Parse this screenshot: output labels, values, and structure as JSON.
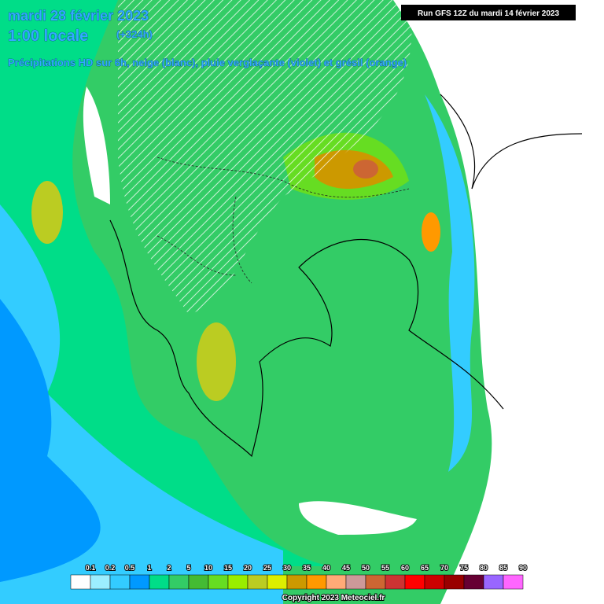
{
  "header": {
    "date": "mardi 28 février 2023",
    "time": "1:00 locale",
    "offset": "(+324h)",
    "description": "Précipitations HD sur 6h, neige (blanc), pluie verglaçante (violet) et grésil (orange)",
    "run": "Run GFS 12Z du mardi 14 février 2023"
  },
  "legend": {
    "labels": [
      "0.1",
      "0.2",
      "0.5",
      "1",
      "2",
      "5",
      "10",
      "15",
      "20",
      "25",
      "30",
      "35",
      "40",
      "45",
      "50",
      "55",
      "60",
      "65",
      "70",
      "75",
      "80",
      "85",
      "90"
    ],
    "colors": [
      "#ffffff",
      "#9ceeff",
      "#33ccff",
      "#0099ff",
      "#00dd88",
      "#33cc66",
      "#44bb33",
      "#66dd22",
      "#99ee00",
      "#bbcc22",
      "#ddee00",
      "#cc9900",
      "#ff9900",
      "#ffaa77",
      "#cc9999",
      "#cc6633",
      "#cc3333",
      "#ff0000",
      "#cc0000",
      "#990000",
      "#660033",
      "#9966ff",
      "#ff66ff"
    ]
  },
  "footer": {
    "copyright": "Copyright 2023 Meteociel.fr"
  }
}
